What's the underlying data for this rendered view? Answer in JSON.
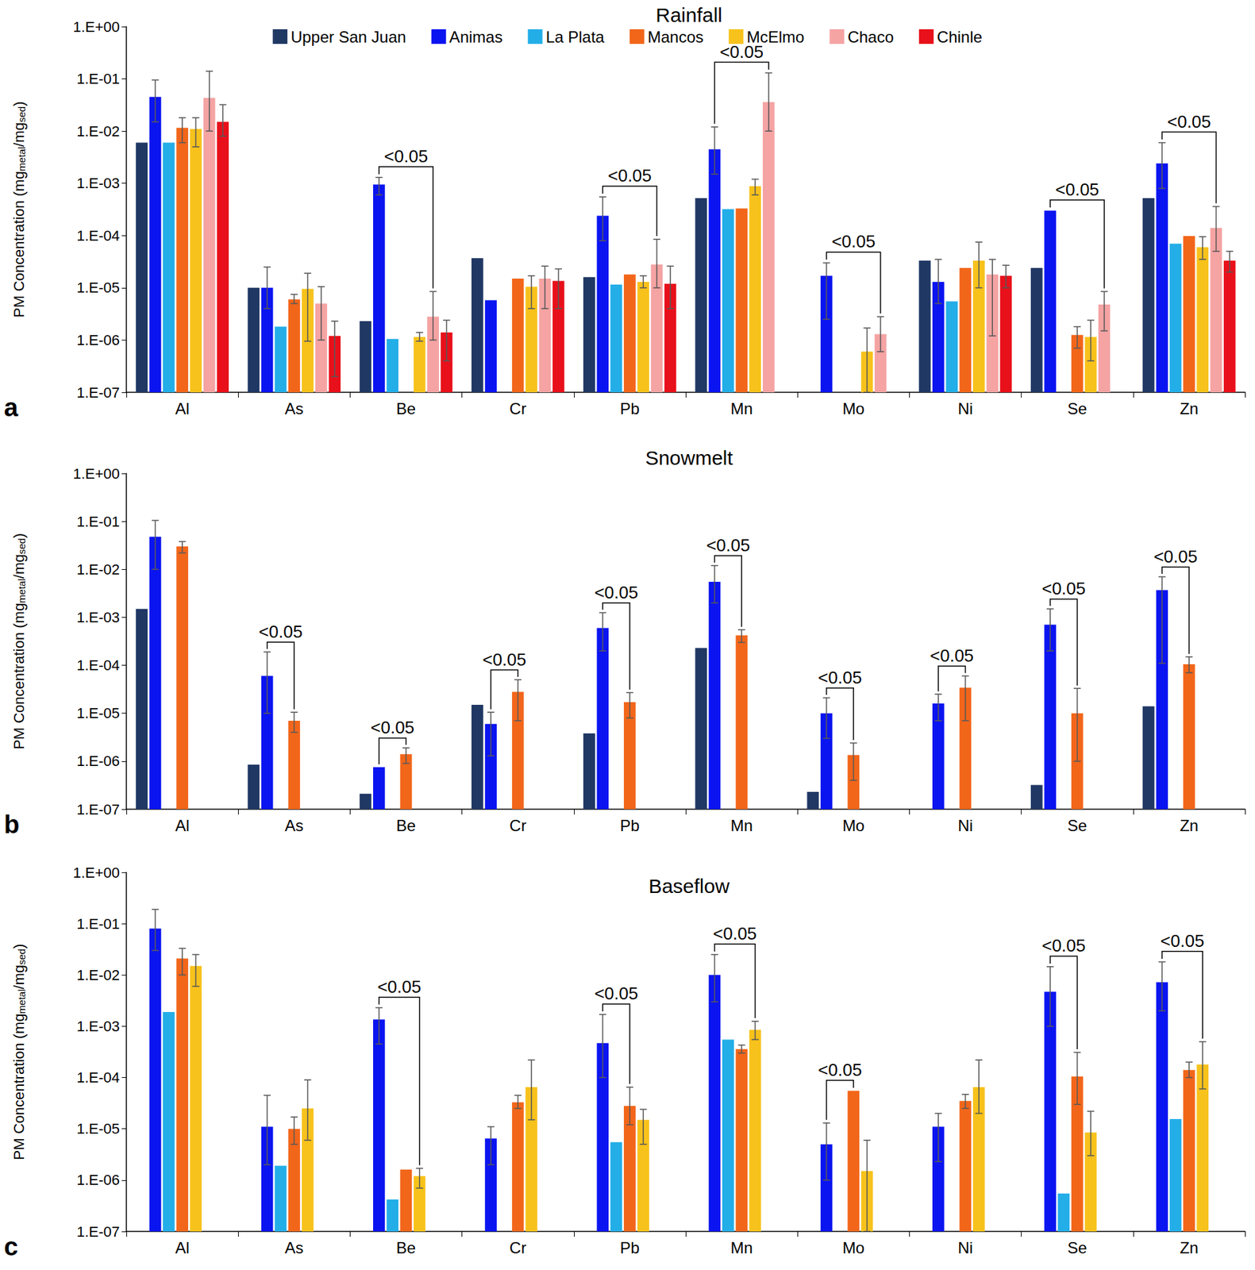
{
  "chart_data": [
    {
      "type": "bar",
      "title": "Rainfall",
      "panel_label": "a",
      "ylabel": [
        {
          "text": "PM Concentration (mg"
        },
        {
          "text": "metal",
          "sub": true
        },
        {
          "text": "/mg"
        },
        {
          "text": "sed",
          "sub": true
        },
        {
          "text": ")"
        }
      ],
      "categories": [
        "Al",
        "As",
        "Be",
        "Cr",
        "Pb",
        "Mn",
        "Mo",
        "Ni",
        "Se",
        "Zn"
      ],
      "log": "y",
      "grid": false,
      "legend": "top",
      "ylim": [
        1e-07,
        1
      ],
      "yticks": [
        {
          "value": 1e-07,
          "label": "1.E-07"
        },
        {
          "value": 1e-06,
          "label": "1.E-06"
        },
        {
          "value": 1e-05,
          "label": "1.E-05"
        },
        {
          "value": 0.0001,
          "label": "1.E-04"
        },
        {
          "value": 0.001,
          "label": "1.E-03"
        },
        {
          "value": 0.01,
          "label": "1.E-02"
        },
        {
          "value": 0.1,
          "label": "1.E-01"
        },
        {
          "value": 1,
          "label": "1.E+00"
        }
      ],
      "series": [
        {
          "name": "Upper San Juan",
          "color": "#203864",
          "values": [
            0.006,
            1e-05,
            2.3e-06,
            3.7e-05,
            1.6e-05,
            0.00052,
            null,
            3.3e-05,
            2.4e-05,
            0.00052
          ]
        },
        {
          "name": "Animas",
          "color": "#0A14F0",
          "values": [
            0.045,
            1e-05,
            0.00095,
            5.8e-06,
            0.00024,
            0.0045,
            1.7e-05,
            1.3e-05,
            0.0003,
            0.0024
          ],
          "error_low": [
            0.015,
            4e-06,
            0.0006,
            null,
            8e-05,
            0.0015,
            2.5e-06,
            5e-06,
            null,
            0.0008
          ],
          "error_high": [
            0.095,
            2.5e-05,
            0.0013,
            null,
            0.00055,
            0.012,
            3e-05,
            3.5e-05,
            null,
            0.006
          ]
        },
        {
          "name": "La Plata",
          "color": "#23AEE8",
          "values": [
            0.006,
            1.8e-06,
            1.05e-06,
            null,
            1.15e-05,
            0.00032,
            null,
            5.5e-06,
            null,
            7e-05
          ]
        },
        {
          "name": "Mancos",
          "color": "#F2661A",
          "values": [
            0.0115,
            6e-06,
            null,
            1.5e-05,
            1.8e-05,
            0.00033,
            null,
            2.4e-05,
            1.25e-06,
            9.8e-05
          ],
          "error_low": [
            0.006,
            5e-06,
            null,
            null,
            null,
            null,
            null,
            null,
            7e-07,
            null
          ],
          "error_high": [
            0.018,
            7.5e-06,
            null,
            null,
            null,
            null,
            null,
            null,
            1.8e-06,
            null
          ]
        },
        {
          "name": "McElmo",
          "color": "#F7C21B",
          "values": [
            0.011,
            9.5e-06,
            1.15e-06,
            1.05e-05,
            1.3e-05,
            0.00088,
            6e-07,
            3.3e-05,
            1.15e-06,
            6e-05
          ],
          "error_low": [
            0.005,
            9.5e-07,
            9.5e-07,
            4e-06,
            1e-05,
            0.0006,
            1e-07,
            1e-05,
            4e-07,
            3.5e-05
          ],
          "error_high": [
            0.018,
            1.9e-05,
            1.4e-06,
            1.7e-05,
            1.7e-05,
            0.0012,
            1.7e-06,
            7.5e-05,
            2.4e-06,
            9.5e-05
          ]
        },
        {
          "name": "Chaco",
          "color": "#F5A3A3",
          "values": [
            0.043,
            5e-06,
            2.8e-06,
            1.5e-05,
            2.8e-05,
            0.036,
            1.3e-06,
            1.8e-05,
            4.8e-06,
            0.00014
          ],
          "error_low": [
            0.01,
            1e-06,
            1e-06,
            4e-06,
            1e-05,
            0.01,
            6e-07,
            1.2e-06,
            1.5e-06,
            5e-05
          ],
          "error_high": [
            0.14,
            1.05e-05,
            8.5e-06,
            2.6e-05,
            8.5e-05,
            0.13,
            2.8e-06,
            3.5e-05,
            8.5e-06,
            0.00036
          ]
        },
        {
          "name": "Chinle",
          "color": "#E8101A",
          "values": [
            0.015,
            1.2e-06,
            1.4e-06,
            1.35e-05,
            1.2e-05,
            null,
            null,
            1.7e-05,
            null,
            3.3e-05
          ],
          "error_low": [
            0.008,
            2e-07,
            4e-07,
            4e-06,
            4e-06,
            null,
            null,
            1e-05,
            null,
            2e-05
          ],
          "error_high": [
            0.032,
            2.3e-06,
            2.4e-06,
            2.3e-05,
            2.6e-05,
            null,
            null,
            2.7e-05,
            null,
            5e-05
          ]
        }
      ],
      "annotations": [
        {
          "text": "<0.05",
          "category": "Be",
          "from": "Animas",
          "to": "Chaco"
        },
        {
          "text": "<0.05",
          "category": "Pb",
          "from": "Animas",
          "to": "Chaco"
        },
        {
          "text": "<0.05",
          "category": "Mn",
          "from": "Animas",
          "to": "Chaco"
        },
        {
          "text": "<0.05",
          "category": "Mo",
          "from": "Animas",
          "to": "Chaco"
        },
        {
          "text": "<0.05",
          "category": "Se",
          "from": "Animas",
          "to": "Chaco"
        },
        {
          "text": "<0.05",
          "category": "Zn",
          "from": "Animas",
          "to": "Chaco"
        }
      ]
    },
    {
      "type": "bar",
      "title": "Snowmelt",
      "panel_label": "b",
      "ylabel": [
        {
          "text": "PM Concentration (mg"
        },
        {
          "text": "metal",
          "sub": true
        },
        {
          "text": "/mg"
        },
        {
          "text": "sed",
          "sub": true
        },
        {
          "text": ")"
        }
      ],
      "categories": [
        "Al",
        "As",
        "Be",
        "Cr",
        "Pb",
        "Mn",
        "Mo",
        "Ni",
        "Se",
        "Zn"
      ],
      "log": "y",
      "grid": false,
      "ylim": [
        1e-07,
        1
      ],
      "yticks": [
        {
          "value": 1e-07,
          "label": "1.E-07"
        },
        {
          "value": 1e-06,
          "label": "1.E-06"
        },
        {
          "value": 1e-05,
          "label": "1.E-05"
        },
        {
          "value": 0.0001,
          "label": "1.E-04"
        },
        {
          "value": 0.001,
          "label": "1.E-03"
        },
        {
          "value": 0.01,
          "label": "1.E-02"
        },
        {
          "value": 0.1,
          "label": "1.E-01"
        },
        {
          "value": 1,
          "label": "1.E+00"
        }
      ],
      "series": [
        {
          "name": "Upper San Juan",
          "color": "#203864",
          "values": [
            0.0015,
            8.5e-07,
            2.1e-07,
            1.5e-05,
            3.8e-06,
            0.00023,
            2.3e-07,
            null,
            3.2e-07,
            1.4e-05
          ]
        },
        {
          "name": "Animas",
          "color": "#0A14F0",
          "values": [
            0.048,
            6e-05,
            7.5e-07,
            6e-06,
            0.0006,
            0.0055,
            1e-05,
            1.6e-05,
            0.0007,
            0.0037
          ],
          "error_low": [
            0.01,
            1e-05,
            null,
            1.3e-06,
            0.0002,
            0.002,
            3e-06,
            7e-06,
            0.0002,
            0.00011
          ],
          "error_high": [
            0.105,
            0.00019,
            null,
            1.05e-05,
            0.00125,
            0.012,
            2.1e-05,
            2.5e-05,
            0.0015,
            0.007
          ]
        },
        {
          "name": "Mancos",
          "color": "#F2661A",
          "values": [
            0.03,
            7e-06,
            1.4e-06,
            2.8e-05,
            1.7e-05,
            0.00042,
            1.35e-06,
            3.4e-05,
            1e-05,
            0.000105
          ],
          "error_low": [
            0.022,
            4e-06,
            9e-07,
            7e-06,
            8e-06,
            0.0003,
            4e-07,
            7e-06,
            1e-06,
            7e-05
          ],
          "error_high": [
            0.038,
            1.05e-05,
            1.9e-06,
            5e-05,
            2.7e-05,
            0.00055,
            2.4e-06,
            6e-05,
            3.3e-05,
            0.00015
          ]
        }
      ],
      "annotations": [
        {
          "text": "<0.05",
          "category": "As",
          "from": "Animas",
          "to": "Mancos"
        },
        {
          "text": "<0.05",
          "category": "Be",
          "from": "Animas",
          "to": "Mancos"
        },
        {
          "text": "<0.05",
          "category": "Cr",
          "from": "Animas",
          "to": "Mancos"
        },
        {
          "text": "<0.05",
          "category": "Pb",
          "from": "Animas",
          "to": "Mancos"
        },
        {
          "text": "<0.05",
          "category": "Mn",
          "from": "Animas",
          "to": "Mancos"
        },
        {
          "text": "<0.05",
          "category": "Mo",
          "from": "Animas",
          "to": "Mancos"
        },
        {
          "text": "<0.05",
          "category": "Ni",
          "from": "Animas",
          "to": "Mancos"
        },
        {
          "text": "<0.05",
          "category": "Se",
          "from": "Animas",
          "to": "Mancos"
        },
        {
          "text": "<0.05",
          "category": "Zn",
          "from": "Animas",
          "to": "Mancos"
        }
      ]
    },
    {
      "type": "bar",
      "title": "Baseflow",
      "panel_label": "c",
      "ylabel": [
        {
          "text": "PM Concentration (mg"
        },
        {
          "text": "metal",
          "sub": true
        },
        {
          "text": "/mg"
        },
        {
          "text": "sed",
          "sub": true
        },
        {
          "text": ")"
        }
      ],
      "categories": [
        "Al",
        "As",
        "Be",
        "Cr",
        "Pb",
        "Mn",
        "Mo",
        "Ni",
        "Se",
        "Zn"
      ],
      "log": "y",
      "grid": false,
      "ylim": [
        1e-07,
        1
      ],
      "yticks": [
        {
          "value": 1e-07,
          "label": "1.E-07"
        },
        {
          "value": 1e-06,
          "label": "1.E-06"
        },
        {
          "value": 1e-05,
          "label": "1.E-05"
        },
        {
          "value": 0.0001,
          "label": "1.E-04"
        },
        {
          "value": 0.001,
          "label": "1.E-03"
        },
        {
          "value": 0.01,
          "label": "1.E-02"
        },
        {
          "value": 0.1,
          "label": "1.E-01"
        },
        {
          "value": 1,
          "label": "1.E+00"
        }
      ],
      "series": [
        {
          "name": "Animas",
          "color": "#0A14F0",
          "values": [
            0.08,
            1.1e-05,
            0.00135,
            6.5e-06,
            0.00047,
            0.01,
            5e-06,
            1.1e-05,
            0.0047,
            0.0072
          ],
          "error_low": [
            0.03,
            2e-06,
            0.00045,
            2e-06,
            0.0001,
            0.003,
            1e-06,
            2.3e-06,
            0.001,
            0.002
          ],
          "error_high": [
            0.19,
            4.5e-05,
            0.0023,
            1.1e-05,
            0.0017,
            0.025,
            1.3e-05,
            2e-05,
            0.0145,
            0.018
          ]
        },
        {
          "name": "La Plata",
          "color": "#23AEE8",
          "values": [
            0.0019,
            1.9e-06,
            4.2e-07,
            null,
            5.5e-06,
            0.00055,
            null,
            null,
            5.5e-07,
            1.55e-05
          ]
        },
        {
          "name": "Mancos",
          "color": "#F2661A",
          "values": [
            0.021,
            1e-05,
            1.6e-06,
            3.3e-05,
            2.8e-05,
            0.00036,
            5.5e-05,
            3.5e-05,
            0.000105,
            0.00014
          ],
          "error_low": [
            0.01,
            5e-06,
            null,
            2.5e-05,
            1.2e-05,
            0.0003,
            null,
            2.5e-05,
            3e-05,
            0.0001
          ],
          "error_high": [
            0.033,
            1.7e-05,
            null,
            4.5e-05,
            6.5e-05,
            0.00043,
            null,
            4.7e-05,
            0.00031,
            0.0002
          ]
        },
        {
          "name": "McElmo",
          "color": "#F7C21B",
          "values": [
            0.015,
            2.5e-05,
            1.2e-06,
            6.5e-05,
            1.5e-05,
            0.00085,
            1.5e-06,
            6.5e-05,
            8.5e-06,
            0.00018
          ],
          "error_low": [
            0.006,
            6e-06,
            7e-07,
            1.5e-05,
            5e-06,
            0.00055,
            1e-07,
            2e-05,
            3e-06,
            6e-05
          ],
          "error_high": [
            0.025,
            9e-05,
            1.7e-06,
            0.00022,
            2.4e-05,
            0.00125,
            6e-06,
            0.00022,
            2.2e-05,
            0.0005
          ]
        }
      ],
      "annotations": [
        {
          "text": "<0.05",
          "category": "Be",
          "from": "Animas",
          "to": "McElmo"
        },
        {
          "text": "<0.05",
          "category": "Pb",
          "from": "Animas",
          "to": "Mancos"
        },
        {
          "text": "<0.05",
          "category": "Mn",
          "from": "Animas",
          "to": "McElmo"
        },
        {
          "text": "<0.05",
          "category": "Mo",
          "from": "Animas",
          "to": "Mancos"
        },
        {
          "text": "<0.05",
          "category": "Se",
          "from": "Animas",
          "to": "Mancos"
        },
        {
          "text": "<0.05",
          "category": "Zn",
          "from": "Animas",
          "to": "McElmo"
        }
      ]
    }
  ]
}
